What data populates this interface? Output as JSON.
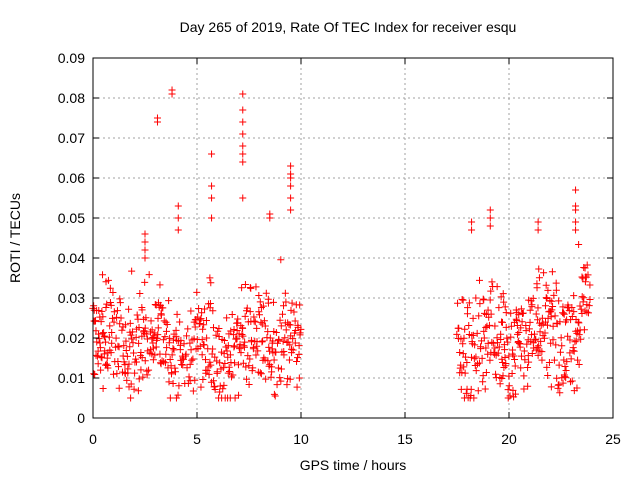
{
  "chart_data": {
    "type": "scatter",
    "title": "Day 265 of 2019, Rate Of TEC Index for receiver esqu",
    "xlabel": "GPS time / hours",
    "ylabel": "ROTI / TECUs",
    "xlim": [
      0,
      25
    ],
    "ylim": [
      0,
      0.09
    ],
    "grid": true,
    "marker": "+",
    "color": "#ff0000",
    "x_ticks": [
      {
        "value": 0,
        "label": "0"
      },
      {
        "value": 5,
        "label": "5"
      },
      {
        "value": 10,
        "label": "10"
      },
      {
        "value": 15,
        "label": "15"
      },
      {
        "value": 20,
        "label": "20"
      },
      {
        "value": 25,
        "label": "25"
      }
    ],
    "y_ticks": [
      {
        "value": 0,
        "label": "0"
      },
      {
        "value": 0.01,
        "label": "0.01"
      },
      {
        "value": 0.02,
        "label": "0.02"
      },
      {
        "value": 0.03,
        "label": "0.03"
      },
      {
        "value": 0.04,
        "label": "0.04"
      },
      {
        "value": 0.05,
        "label": "0.05"
      },
      {
        "value": 0.06,
        "label": "0.06"
      },
      {
        "value": 0.07,
        "label": "0.07"
      },
      {
        "value": 0.08,
        "label": "0.08"
      },
      {
        "value": 0.09,
        "label": "0.09"
      }
    ],
    "segments": [
      {
        "start": 0.0,
        "end": 10.0,
        "step": 0.03,
        "base": 0.018,
        "spread": 0.01,
        "seed": 7
      },
      {
        "start": 17.5,
        "end": 23.9,
        "step": 0.03,
        "base": 0.02,
        "spread": 0.01,
        "seed": 13
      }
    ],
    "peaks": [
      {
        "x": 2.5,
        "y": [
          0.046,
          0.044,
          0.042,
          0.04
        ]
      },
      {
        "x": 3.1,
        "y": [
          0.075,
          0.074
        ]
      },
      {
        "x": 3.8,
        "y": [
          0.082,
          0.081
        ]
      },
      {
        "x": 4.1,
        "y": [
          0.053,
          0.05,
          0.047
        ]
      },
      {
        "x": 5.7,
        "y": [
          0.066,
          0.058,
          0.055,
          0.05
        ]
      },
      {
        "x": 7.2,
        "y": [
          0.081,
          0.077,
          0.074,
          0.071,
          0.068,
          0.066,
          0.064,
          0.055
        ]
      },
      {
        "x": 8.5,
        "y": [
          0.051,
          0.05
        ]
      },
      {
        "x": 9.5,
        "y": [
          0.063,
          0.061,
          0.06,
          0.058,
          0.055,
          0.052
        ]
      },
      {
        "x": 18.2,
        "y": [
          0.049,
          0.047
        ]
      },
      {
        "x": 19.1,
        "y": [
          0.052,
          0.05,
          0.048
        ]
      },
      {
        "x": 21.4,
        "y": [
          0.049,
          0.047
        ]
      },
      {
        "x": 23.2,
        "y": [
          0.057,
          0.053,
          0.052,
          0.049,
          0.047
        ]
      }
    ]
  }
}
